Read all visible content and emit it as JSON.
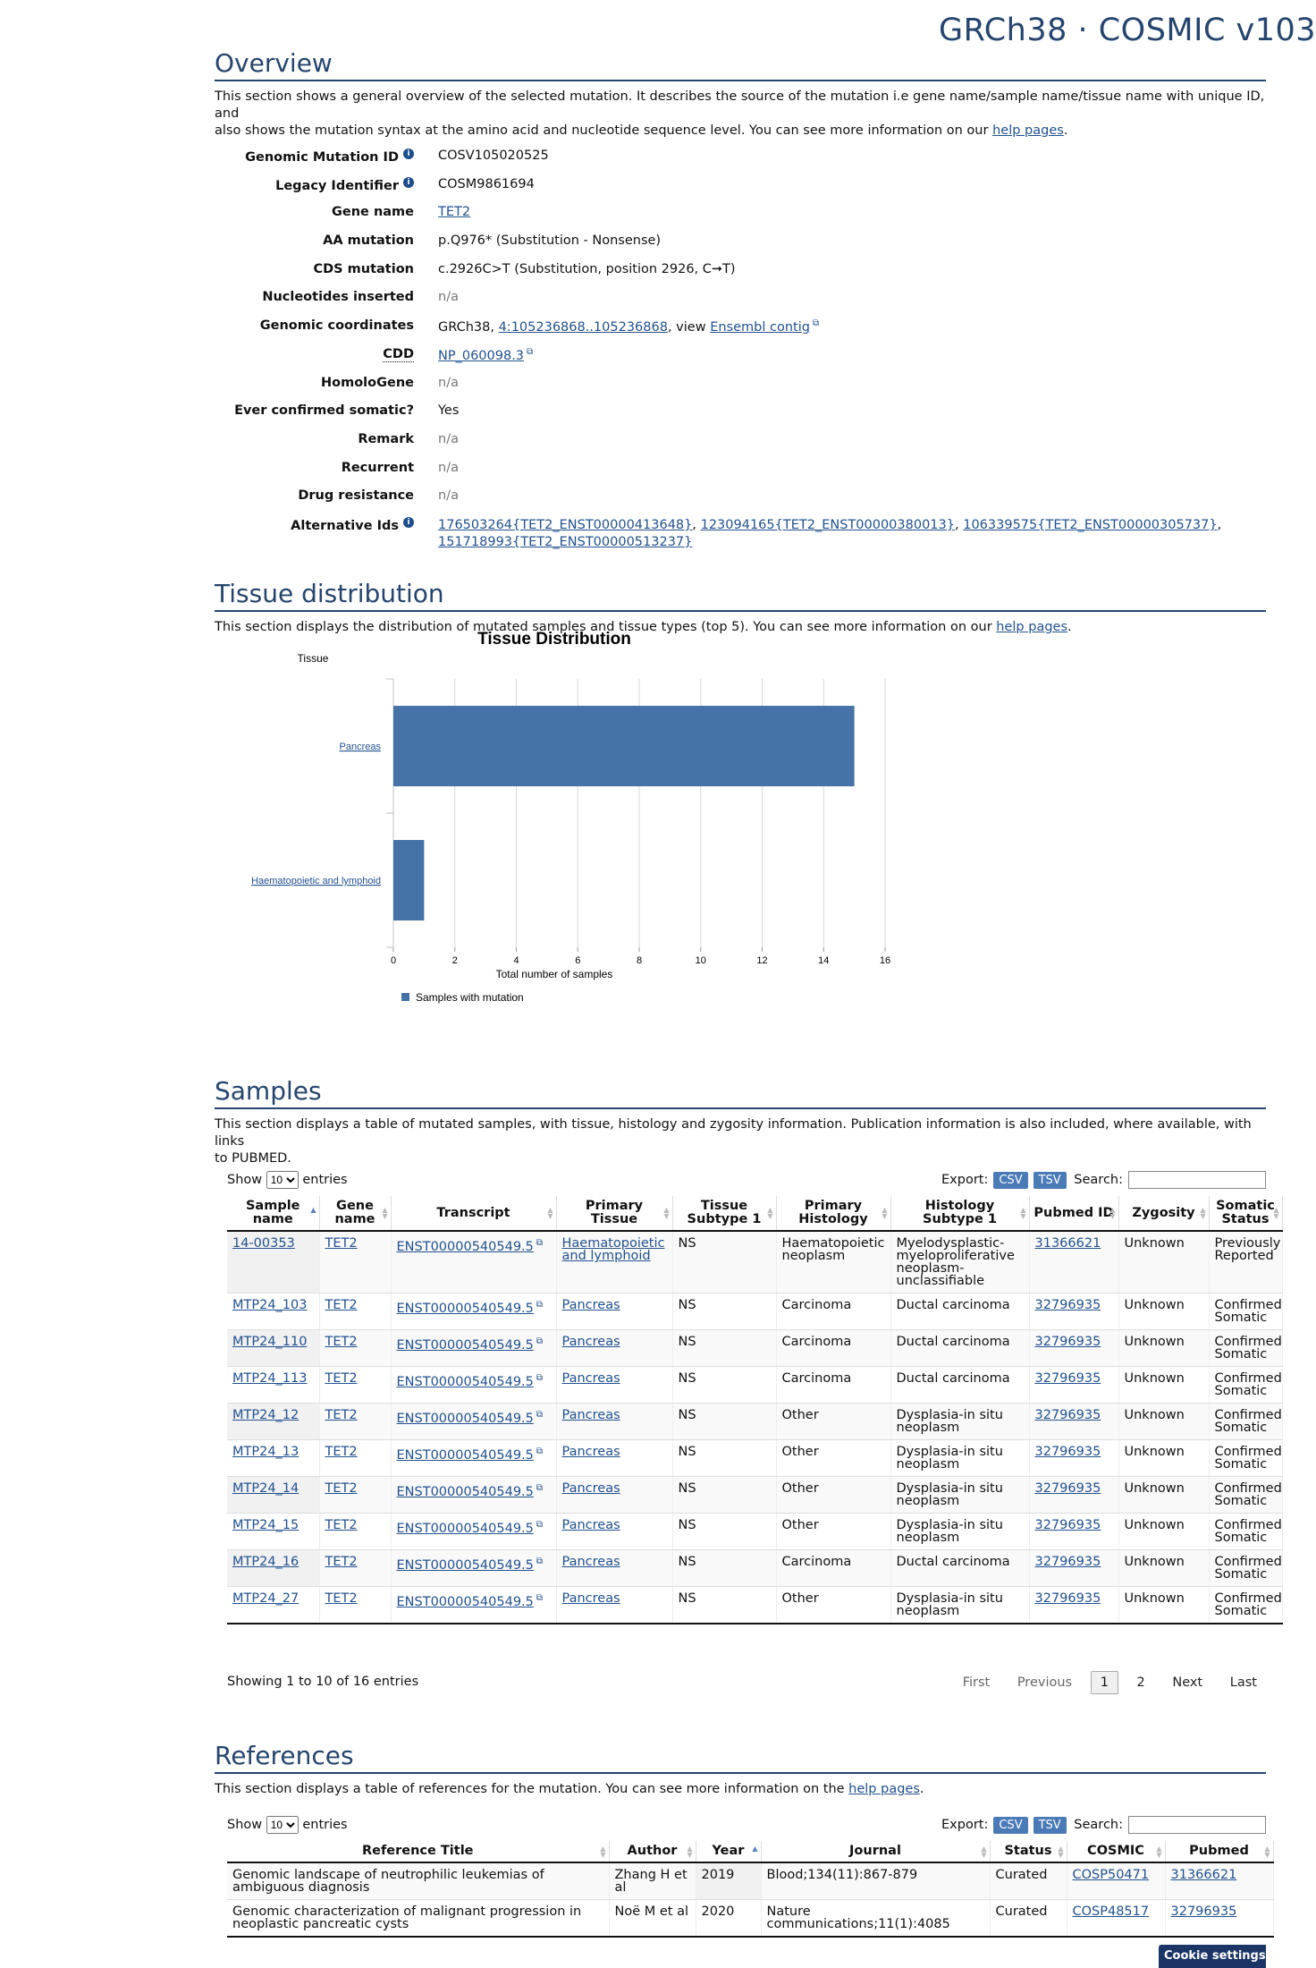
{
  "brand": "GRCh38 · COSMIC v103",
  "overview": {
    "title": "Overview",
    "desc_line1": "This section shows a general overview of the selected mutation. It describes the source of the mutation i.e gene name/sample name/tissue name with unique ID, and",
    "desc_line2_prefix": "also shows the mutation syntax at the amino acid and nucleotide sequence level. You can see more information on our ",
    "help_link": "help pages",
    "fields": {
      "genomic_mutation_id": {
        "label": "Genomic Mutation ID",
        "value": "COSV105020525"
      },
      "legacy_identifier": {
        "label": "Legacy Identifier",
        "value": "COSM9861694"
      },
      "gene_name": {
        "label": "Gene name",
        "value": "TET2"
      },
      "aa_mutation": {
        "label": "AA mutation",
        "value": "p.Q976* (Substitution - Nonsense)"
      },
      "cds_mutation": {
        "label": "CDS mutation",
        "value": "c.2926C>T (Substitution, position 2926, C➞T)"
      },
      "nucleotides_inserted": {
        "label": "Nucleotides inserted",
        "value": "n/a"
      },
      "genomic_coordinates": {
        "label": "Genomic coordinates",
        "prefix": "GRCh38, ",
        "coords": "4:105236868..105236868",
        "mid": ", view ",
        "contig": "Ensembl contig"
      },
      "cdd": {
        "label": "CDD",
        "value": "NP_060098.3"
      },
      "homologene": {
        "label": "HomoloGene",
        "value": "n/a"
      },
      "ever_confirmed": {
        "label": "Ever confirmed somatic?",
        "value": "Yes"
      },
      "remark": {
        "label": "Remark",
        "value": "n/a"
      },
      "recurrent": {
        "label": "Recurrent",
        "value": "n/a"
      },
      "drug_resistance": {
        "label": "Drug resistance",
        "value": "n/a"
      },
      "alternative_ids": {
        "label": "Alternative Ids",
        "ids": [
          "176503264{TET2_ENST00000413648}",
          "123094165{TET2_ENST00000380013}",
          "106339575{TET2_ENST00000305737}",
          "151718993{TET2_ENST00000513237}"
        ]
      }
    }
  },
  "tissue": {
    "title": "Tissue distribution",
    "desc_prefix": "This section displays the distribution of mutated samples and tissue types (top 5). You can see more information on our ",
    "help_link": "help pages"
  },
  "chart_data": {
    "type": "bar",
    "orientation": "horizontal",
    "title": "Tissue Distribution",
    "ylabel": "Tissue",
    "xlabel": "Total number of samples",
    "categories": [
      "Pancreas",
      "Haematopoietic and lymphoid"
    ],
    "series": [
      {
        "name": "Samples with mutation",
        "values": [
          15,
          1
        ],
        "color": "#4572a7"
      }
    ],
    "xlim": [
      0,
      16
    ],
    "xticks": [
      0,
      2,
      4,
      6,
      8,
      10,
      12,
      14,
      16
    ],
    "grid": true,
    "legend": "bottom-left"
  },
  "samples": {
    "title": "Samples",
    "desc_line1": "This section displays a table of mutated samples, with tissue, histology and zygosity information. Publication information is also included, where available, with links",
    "desc_line2": "to PUBMED.",
    "show": "Show",
    "entries": "entries",
    "page_size": "10",
    "export": "Export:",
    "csv": "CSV",
    "tsv": "TSV",
    "search": "Search:",
    "columns": [
      "Sample name",
      "Gene name",
      "Transcript",
      "Primary Tissue",
      "Tissue Subtype 1",
      "Primary Histology",
      "Histology Subtype 1",
      "Pubmed ID",
      "Zygosity",
      "Somatic Status"
    ],
    "rows": [
      [
        "14-00353",
        "TET2",
        "ENST00000540549.5",
        "Haematopoietic and lymphoid",
        "NS",
        "Haematopoietic neoplasm",
        "Myelodysplastic-myeloproliferative neoplasm-unclassifiable",
        "31366621",
        "Unknown",
        "Previously Reported"
      ],
      [
        "MTP24_103",
        "TET2",
        "ENST00000540549.5",
        "Pancreas",
        "NS",
        "Carcinoma",
        "Ductal carcinoma",
        "32796935",
        "Unknown",
        "Confirmed Somatic"
      ],
      [
        "MTP24_110",
        "TET2",
        "ENST00000540549.5",
        "Pancreas",
        "NS",
        "Carcinoma",
        "Ductal carcinoma",
        "32796935",
        "Unknown",
        "Confirmed Somatic"
      ],
      [
        "MTP24_113",
        "TET2",
        "ENST00000540549.5",
        "Pancreas",
        "NS",
        "Carcinoma",
        "Ductal carcinoma",
        "32796935",
        "Unknown",
        "Confirmed Somatic"
      ],
      [
        "MTP24_12",
        "TET2",
        "ENST00000540549.5",
        "Pancreas",
        "NS",
        "Other",
        "Dysplasia-in situ neoplasm",
        "32796935",
        "Unknown",
        "Confirmed Somatic"
      ],
      [
        "MTP24_13",
        "TET2",
        "ENST00000540549.5",
        "Pancreas",
        "NS",
        "Other",
        "Dysplasia-in situ neoplasm",
        "32796935",
        "Unknown",
        "Confirmed Somatic"
      ],
      [
        "MTP24_14",
        "TET2",
        "ENST00000540549.5",
        "Pancreas",
        "NS",
        "Other",
        "Dysplasia-in situ neoplasm",
        "32796935",
        "Unknown",
        "Confirmed Somatic"
      ],
      [
        "MTP24_15",
        "TET2",
        "ENST00000540549.5",
        "Pancreas",
        "NS",
        "Other",
        "Dysplasia-in situ neoplasm",
        "32796935",
        "Unknown",
        "Confirmed Somatic"
      ],
      [
        "MTP24_16",
        "TET2",
        "ENST00000540549.5",
        "Pancreas",
        "NS",
        "Carcinoma",
        "Ductal carcinoma",
        "32796935",
        "Unknown",
        "Confirmed Somatic"
      ],
      [
        "MTP24_27",
        "TET2",
        "ENST00000540549.5",
        "Pancreas",
        "NS",
        "Other",
        "Dysplasia-in situ neoplasm",
        "32796935",
        "Unknown",
        "Confirmed Somatic"
      ]
    ],
    "info": "Showing 1 to 10 of 16 entries",
    "pager": {
      "first": "First",
      "previous": "Previous",
      "current": "1",
      "page2": "2",
      "next": "Next",
      "last": "Last"
    }
  },
  "references": {
    "title": "References",
    "desc_prefix": "This section displays a table of references for the mutation. You can see more information on the ",
    "help_link": "help pages",
    "show": "Show",
    "entries": "entries",
    "page_size": "10",
    "export": "Export:",
    "csv": "CSV",
    "tsv": "TSV",
    "search": "Search:",
    "columns": [
      "Reference Title",
      "Author",
      "Year",
      "Journal",
      "Status",
      "COSMIC",
      "Pubmed"
    ],
    "rows": [
      [
        "Genomic landscape of neutrophilic leukemias of ambiguous diagnosis",
        "Zhang H et al",
        "2019",
        "Blood;134(11):867-879",
        "Curated",
        "COSP50471",
        "31366621"
      ],
      [
        "Genomic characterization of malignant progression in neoplastic pancreatic cysts",
        "Noë M et al",
        "2020",
        "Nature communications;11(1):4085",
        "Curated",
        "COSP48517",
        "32796935"
      ]
    ]
  },
  "cookie": "Cookie settings"
}
